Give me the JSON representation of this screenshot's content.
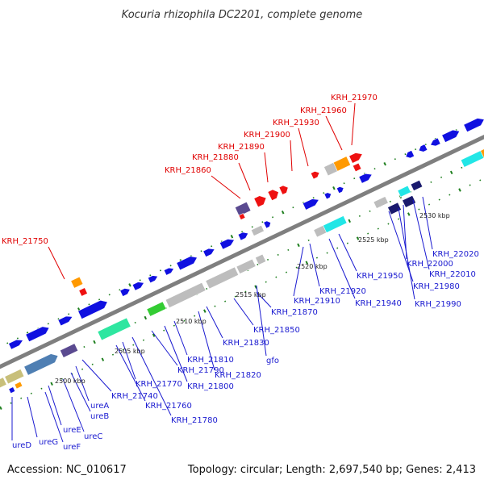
{
  "title": "Kocuria rhizophila DC2201, complete genome",
  "footer": {
    "accession": "Accession: NC_010617",
    "summary": "Topology: circular; Length: 2,697,540 bp; Genes: 2,413"
  },
  "colors": {
    "backbone": "#7f7f7f",
    "label_red": "#e00000",
    "label_blue": "#1a1ad0",
    "tick_green": "#1f7f1f",
    "gene_blue": "#1010e0",
    "gene_red": "#ee1111",
    "gene_orange": "#ff9900",
    "gene_cyan": "#22e6e6",
    "gene_green": "#33cc33",
    "gene_grey": "#bdbdbd",
    "gene_navy": "#1a1a6e",
    "gene_slate": "#4f7fb3",
    "gene_khaki": "#c8bf7a",
    "gene_mint": "#2ee6a0",
    "gene_purple": "#5a4a90"
  },
  "scale_labels": [
    "2500 kbp",
    "2505 kbp",
    "2510 kbp",
    "2515 kbp",
    "2520 kbp",
    "2525 kbp",
    "2530 kbp"
  ],
  "red_labels": [
    "KRH_21750",
    "KRH_21860",
    "KRH_21880",
    "KRH_21890",
    "KRH_21900",
    "KRH_21930",
    "KRH_21960",
    "KRH_21970"
  ],
  "blue_labels": [
    "ureD",
    "ureG",
    "ureF",
    "ureE",
    "ureC",
    "ureB",
    "ureA",
    "KRH_21740",
    "KRH_21760",
    "KRH_21780",
    "KRH_21770",
    "KRH_21790",
    "KRH_21800",
    "KRH_21810",
    "KRH_21820",
    "KRH_21830",
    "gfo",
    "KRH_21850",
    "KRH_21870",
    "KRH_21910",
    "KRH_21920",
    "KRH_21940",
    "KRH_21950",
    "KRH_21980",
    "KRH_21990",
    "KRH_22000",
    "KRH_22010",
    "KRH_22020"
  ]
}
